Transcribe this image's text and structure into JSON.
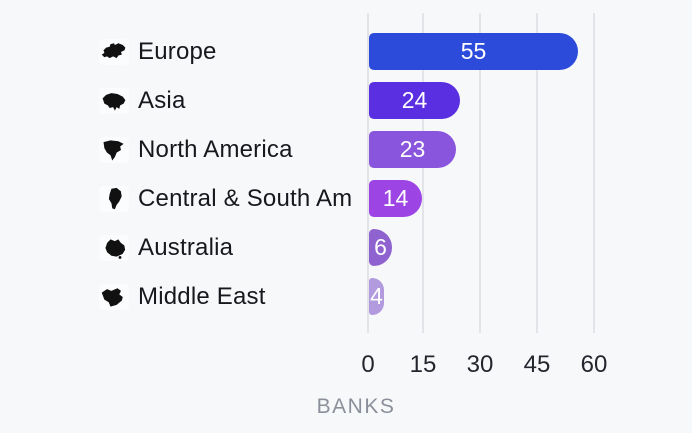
{
  "chart_data": {
    "type": "bar",
    "orientation": "horizontal",
    "categories": [
      "Europe",
      "Asia",
      "North America",
      "Central & South Am",
      "Australia",
      "Middle East"
    ],
    "values": [
      55,
      24,
      23,
      14,
      6,
      4
    ],
    "value_labels": [
      "55",
      "24",
      "23",
      "14",
      "6",
      "4"
    ],
    "xlabel": "BANKS",
    "xticks": [
      0,
      15,
      30,
      45,
      60
    ],
    "xlim": [
      0,
      60
    ],
    "grid": "vertical gridlines only",
    "legend": "none",
    "bar_colors": [
      "#2d4bdb",
      "#5a2fe1",
      "#8a55dd",
      "#9c44e4",
      "#8f63cf",
      "#b29adf"
    ],
    "value_label_position": "inside-center",
    "value_label_color": "#ffffff"
  },
  "rows": [
    {
      "label": "Europe",
      "value": "55",
      "icon": "europe-map-icon"
    },
    {
      "label": "Asia",
      "value": "24",
      "icon": "asia-map-icon"
    },
    {
      "label": "North America",
      "value": "23",
      "icon": "north-america-map-icon"
    },
    {
      "label": "Central & South Am",
      "value": "14",
      "icon": "central-south-america-map-icon"
    },
    {
      "label": "Australia",
      "value": "6",
      "icon": "australia-map-icon"
    },
    {
      "label": "Middle East",
      "value": "4",
      "icon": "middle-east-map-icon"
    }
  ],
  "axis": {
    "ticks": [
      "0",
      "15",
      "30",
      "45",
      "60"
    ],
    "label": "BANKS"
  },
  "colors": {
    "background": "#f7f8fa",
    "gridline": "#e2e4e9",
    "category_text": "#16181d",
    "tick_text": "#23262d",
    "axis_label_text": "#8a8f9a",
    "icon_fill": "#111111"
  }
}
